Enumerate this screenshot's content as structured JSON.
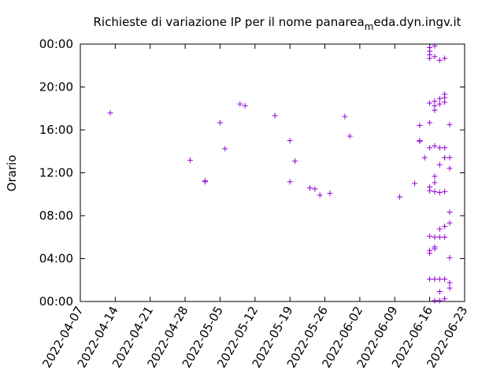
{
  "chart_data": {
    "type": "scatter",
    "title": "Richieste di variazione IP per il nome panarea",
    "title_subscript": "m",
    "title_suffix": "eda.dyn.ingv.it",
    "xlabel": "",
    "ylabel": "Orario",
    "x_axis": "date",
    "y_axis": "time-of-day",
    "xlim": [
      "2022-04-07",
      "2022-06-23"
    ],
    "ylim": [
      "00:00",
      "24:00"
    ],
    "x_ticks": [
      "2022-04-07",
      "2022-04-14",
      "2022-04-21",
      "2022-04-28",
      "2022-05-05",
      "2022-05-12",
      "2022-05-19",
      "2022-05-26",
      "2022-06-02",
      "2022-06-09",
      "2022-06-16",
      "2022-06-23"
    ],
    "y_ticks": [
      "00:00",
      "04:00",
      "08:00",
      "12:00",
      "16:00",
      "20:00",
      "00:00"
    ],
    "grid": false,
    "legend": "none",
    "marker": "+",
    "marker_color": "#9400d3",
    "points": [
      [
        "2022-04-13",
        "17:35"
      ],
      [
        "2022-04-29",
        "13:10"
      ],
      [
        "2022-05-02",
        "11:15"
      ],
      [
        "2022-05-02",
        "11:10"
      ],
      [
        "2022-05-05",
        "16:40"
      ],
      [
        "2022-05-06",
        "14:15"
      ],
      [
        "2022-05-09",
        "18:25"
      ],
      [
        "2022-05-10",
        "18:15"
      ],
      [
        "2022-05-16",
        "17:20"
      ],
      [
        "2022-05-19",
        "15:00"
      ],
      [
        "2022-05-19",
        "11:10"
      ],
      [
        "2022-05-20",
        "13:05"
      ],
      [
        "2022-05-23",
        "10:35"
      ],
      [
        "2022-05-24",
        "10:30"
      ],
      [
        "2022-05-25",
        "09:55"
      ],
      [
        "2022-05-27",
        "10:05"
      ],
      [
        "2022-05-30",
        "17:15"
      ],
      [
        "2022-05-31",
        "15:25"
      ],
      [
        "2022-06-10",
        "09:45"
      ],
      [
        "2022-06-13",
        "11:00"
      ],
      [
        "2022-06-14",
        "16:25"
      ],
      [
        "2022-06-14",
        "15:00"
      ],
      [
        "2022-06-14",
        "14:55"
      ],
      [
        "2022-06-15",
        "13:25"
      ],
      [
        "2022-06-16",
        "23:40"
      ],
      [
        "2022-06-16",
        "23:20"
      ],
      [
        "2022-06-16",
        "23:00"
      ],
      [
        "2022-06-16",
        "22:40"
      ],
      [
        "2022-06-16",
        "18:30"
      ],
      [
        "2022-06-16",
        "16:40"
      ],
      [
        "2022-06-16",
        "14:20"
      ],
      [
        "2022-06-16",
        "10:40"
      ],
      [
        "2022-06-16",
        "10:20"
      ],
      [
        "2022-06-16",
        "06:05"
      ],
      [
        "2022-06-16",
        "04:45"
      ],
      [
        "2022-06-16",
        "04:30"
      ],
      [
        "2022-06-16",
        "02:05"
      ],
      [
        "2022-06-17",
        "23:50"
      ],
      [
        "2022-06-17",
        "22:50"
      ],
      [
        "2022-06-17",
        "18:40"
      ],
      [
        "2022-06-17",
        "18:15"
      ],
      [
        "2022-06-17",
        "17:50"
      ],
      [
        "2022-06-17",
        "14:30"
      ],
      [
        "2022-06-17",
        "11:40"
      ],
      [
        "2022-06-17",
        "11:05"
      ],
      [
        "2022-06-17",
        "10:15"
      ],
      [
        "2022-06-17",
        "06:00"
      ],
      [
        "2022-06-17",
        "05:05"
      ],
      [
        "2022-06-17",
        "04:55"
      ],
      [
        "2022-06-17",
        "02:05"
      ],
      [
        "2022-06-17",
        "00:05"
      ],
      [
        "2022-06-18",
        "22:30"
      ],
      [
        "2022-06-18",
        "18:55"
      ],
      [
        "2022-06-18",
        "18:25"
      ],
      [
        "2022-06-18",
        "14:20"
      ],
      [
        "2022-06-18",
        "12:45"
      ],
      [
        "2022-06-18",
        "10:10"
      ],
      [
        "2022-06-18",
        "06:45"
      ],
      [
        "2022-06-18",
        "06:00"
      ],
      [
        "2022-06-18",
        "02:05"
      ],
      [
        "2022-06-18",
        "00:55"
      ],
      [
        "2022-06-18",
        "00:05"
      ],
      [
        "2022-06-19",
        "22:40"
      ],
      [
        "2022-06-19",
        "19:20"
      ],
      [
        "2022-06-19",
        "19:00"
      ],
      [
        "2022-06-19",
        "18:35"
      ],
      [
        "2022-06-19",
        "14:20"
      ],
      [
        "2022-06-19",
        "13:25"
      ],
      [
        "2022-06-19",
        "10:15"
      ],
      [
        "2022-06-19",
        "07:00"
      ],
      [
        "2022-06-19",
        "06:00"
      ],
      [
        "2022-06-19",
        "02:05"
      ],
      [
        "2022-06-19",
        "00:15"
      ],
      [
        "2022-06-20",
        "16:30"
      ],
      [
        "2022-06-20",
        "13:25"
      ],
      [
        "2022-06-20",
        "12:25"
      ],
      [
        "2022-06-20",
        "08:20"
      ],
      [
        "2022-06-20",
        "07:20"
      ],
      [
        "2022-06-20",
        "04:05"
      ],
      [
        "2022-06-20",
        "01:45"
      ],
      [
        "2022-06-20",
        "01:15"
      ]
    ]
  }
}
